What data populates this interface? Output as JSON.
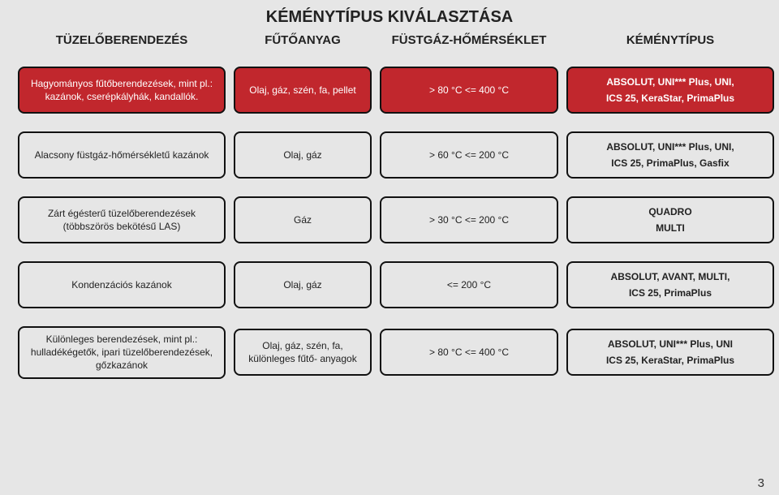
{
  "title": "KÉMÉNYTÍPUS KIVÁLASZTÁSA",
  "columns": [
    "TÜZELŐBERENDEZÉS",
    "FŰTŐANYAG",
    "FÜSTGÁZ-HŐMÉRSÉKLET",
    "KÉMÉNYTÍPUS"
  ],
  "rows": [
    {
      "style": "red",
      "c1": "Hagyományos fűtőberendezések, mint pl.: kazánok, cserépkályhák, kandallók.",
      "c2": "Olaj, gáz, szén, fa, pellet",
      "c3": "> 80 °C <= 400 °C",
      "c4_l1": "ABSOLUT, UNI*** Plus, UNI,",
      "c4_l2": "ICS 25, KeraStar, PrimaPlus"
    },
    {
      "style": "white",
      "c1": "Alacsony füstgáz-hőmérsékletű kazánok",
      "c2": "Olaj, gáz",
      "c3": "> 60 °C <= 200 °C",
      "c4_l1": "ABSOLUT, UNI*** Plus, UNI,",
      "c4_l2": "ICS 25, PrimaPlus, Gasfix"
    },
    {
      "style": "white",
      "c1": "Zárt égésterű tüzelőberendezések (többszörös bekötésű LAS)",
      "c2": "Gáz",
      "c3": "> 30 °C <= 200 °C",
      "c4_l1": "QUADRO",
      "c4_l2": "MULTI"
    },
    {
      "style": "white",
      "c1": "Kondenzációs kazánok",
      "c2": "Olaj, gáz",
      "c3": "<= 200 °C",
      "c4_l1": "ABSOLUT, AVANT, MULTI,",
      "c4_l2": "ICS 25, PrimaPlus"
    },
    {
      "style": "white",
      "c1": "Különleges berendezések, mint pl.: hulladékégetők, ipari tüzelőberendezések, gőzkazánok",
      "c2": "Olaj, gáz, szén, fa, különleges fűtő- anyagok",
      "c3": "> 80 °C <= 400 °C",
      "c4_l1": "ABSOLUT, UNI*** Plus, UNI",
      "c4_l2": "ICS 25, KeraStar, PrimaPlus"
    }
  ],
  "pagenum": "3",
  "colors": {
    "page_bg": "#e6e6e6",
    "box_border": "#111111",
    "red_bg": "#c1272d",
    "red_fg": "#ffffff",
    "text": "#222222"
  }
}
